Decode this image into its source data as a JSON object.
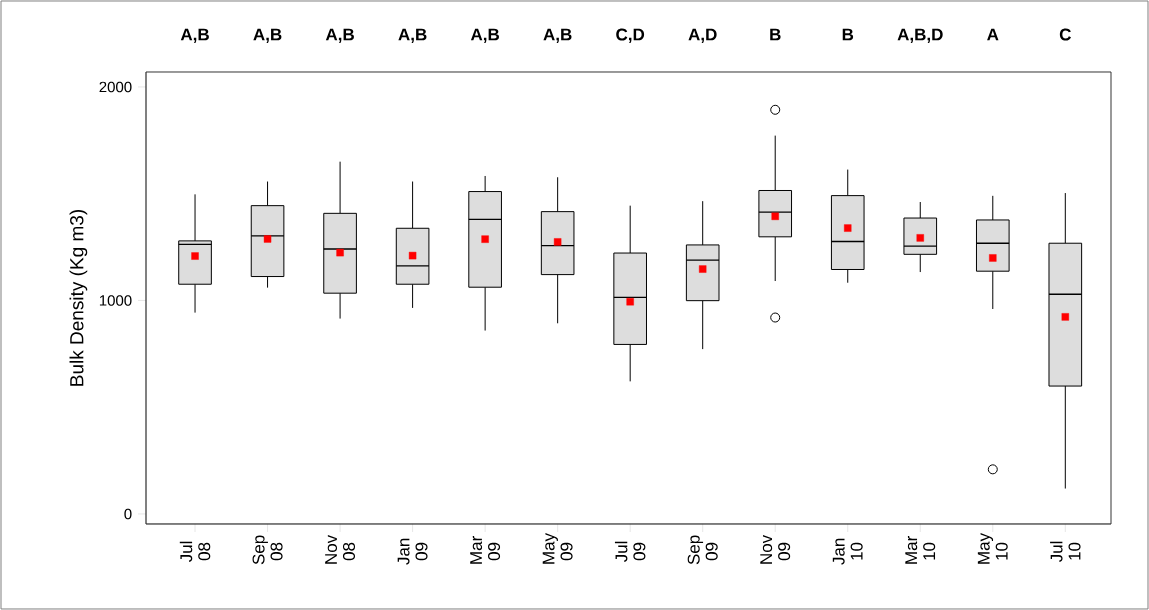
{
  "chart_data": {
    "type": "box",
    "ylabel": "Bulk Density (Kg m3)",
    "categories": [
      "Jul 08",
      "Sep 08",
      "Nov 08",
      "Jan 09",
      "Mar 09",
      "May 09",
      "Jul 09",
      "Sep 09",
      "Nov 09",
      "Jan 10",
      "Mar 10",
      "May 10",
      "Jul 10"
    ],
    "series": [
      {
        "color": "#dddddd",
        "boxes": [
          {
            "low": 943,
            "q1": 1076,
            "median": 1263,
            "q3": 1279,
            "high": 1497,
            "mean": 1208
          },
          {
            "low": 1060,
            "q1": 1112,
            "median": 1302,
            "q3": 1444,
            "high": 1557,
            "mean": 1288
          },
          {
            "low": 915,
            "q1": 1034,
            "median": 1241,
            "q3": 1408,
            "high": 1650,
            "mean": 1224
          },
          {
            "low": 965,
            "q1": 1076,
            "median": 1162,
            "q3": 1338,
            "high": 1557,
            "mean": 1210
          },
          {
            "low": 859,
            "q1": 1062,
            "median": 1380,
            "q3": 1510,
            "high": 1583,
            "mean": 1287
          },
          {
            "low": 893,
            "q1": 1121,
            "median": 1257,
            "q3": 1416,
            "high": 1577,
            "mean": 1274
          },
          {
            "low": 621,
            "q1": 794,
            "median": 1014,
            "q3": 1222,
            "high": 1444,
            "mean": 994
          },
          {
            "low": 772,
            "q1": 999,
            "median": 1189,
            "q3": 1260,
            "high": 1465,
            "mean": 1147
          },
          {
            "low": 1091,
            "q1": 1298,
            "median": 1414,
            "q3": 1515,
            "high": 1772,
            "mean": 1394,
            "outliers": [
              1893,
              920
            ]
          },
          {
            "low": 1083,
            "q1": 1145,
            "median": 1276,
            "q3": 1491,
            "high": 1613,
            "mean": 1339
          },
          {
            "low": 1133,
            "q1": 1216,
            "median": 1254,
            "q3": 1386,
            "high": 1461,
            "mean": 1293
          },
          {
            "low": 960,
            "q1": 1137,
            "median": 1268,
            "q3": 1377,
            "high": 1490,
            "mean": 1199,
            "outliers": [
              209
            ]
          },
          {
            "low": 119,
            "q1": 599,
            "median": 1029,
            "q3": 1268,
            "high": 1503,
            "mean": 923
          }
        ]
      }
    ],
    "ylim": [
      -47,
      2070
    ],
    "yticks": [
      0,
      1000,
      2000
    ],
    "annotations": [
      "A,B",
      "A,B",
      "A,B",
      "A,B",
      "A,B",
      "A,B",
      "C,D",
      "A,D",
      "B",
      "B",
      "A,B,D",
      "A",
      "C"
    ]
  }
}
